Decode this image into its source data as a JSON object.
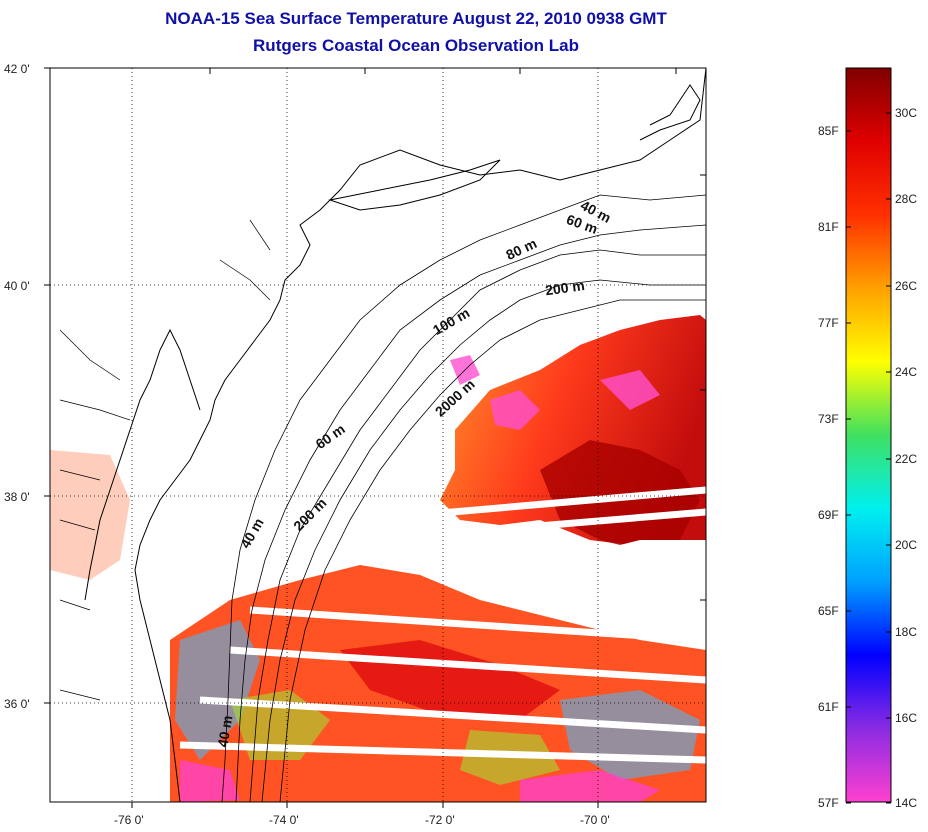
{
  "title": {
    "line1": "NOAA-15 Sea Surface Temperature August 22, 2010 0938 GMT",
    "line2": "Rutgers Coastal Ocean Observation Lab"
  },
  "map": {
    "lat_labels": [
      "42 0'",
      "40 0'",
      "38 0'",
      "36 0'"
    ],
    "lon_labels": [
      "-76 0'",
      "-74 0'",
      "-72 0'",
      "-70 0'"
    ],
    "contour_labels": [
      "40 m",
      "60 m",
      "80 m",
      "200 m",
      "100 m",
      "2000 m",
      "60 m",
      "200 m",
      "40 m",
      "40 m"
    ],
    "colors": {
      "frame": "#000000",
      "grid": "#000000",
      "coastline": "#000000"
    }
  },
  "colorbar": {
    "fahrenheit_labels": [
      "85F",
      "81F",
      "77F",
      "73F",
      "69F",
      "65F",
      "61F",
      "57F"
    ],
    "celsius_labels": [
      "30C",
      "28C",
      "26C",
      "24C",
      "22C",
      "20C",
      "18C",
      "16C",
      "14C"
    ],
    "colors": [
      "#ff40d0",
      "#8a2be2",
      "#0000ff",
      "#00a0ff",
      "#00f0f0",
      "#40e060",
      "#ffff00",
      "#ffa000",
      "#ff3000",
      "#e00000",
      "#800000"
    ]
  }
}
